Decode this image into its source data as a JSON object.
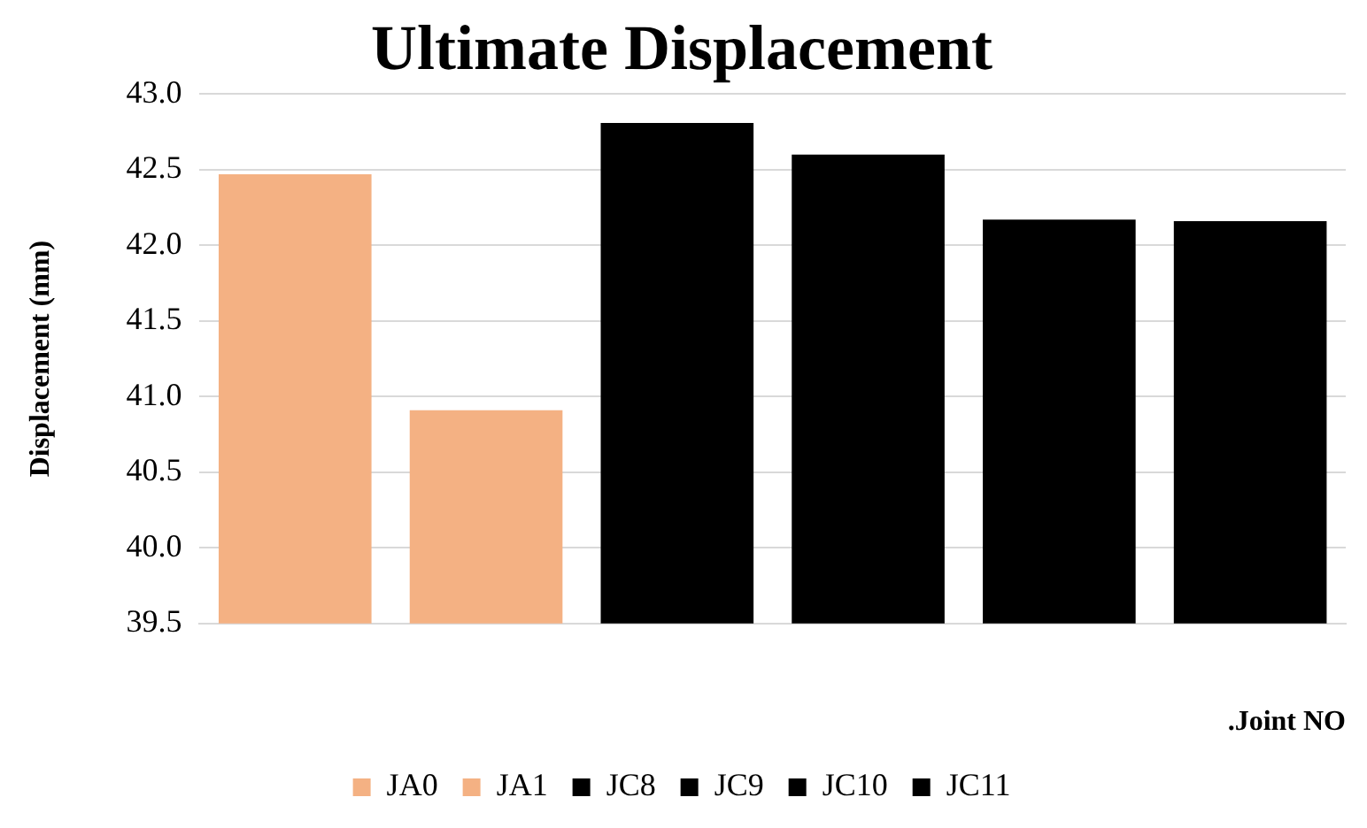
{
  "chart_data": {
    "type": "bar",
    "title": "Ultimate Displacement",
    "xlabel": ".Joint NO",
    "ylabel": "Displacement (mm)",
    "categories": [
      null
    ],
    "series": [
      {
        "name": "JA0",
        "color": "#f4b183",
        "values": [
          42.47
        ]
      },
      {
        "name": "JA1",
        "color": "#f4b183",
        "values": [
          40.91
        ]
      },
      {
        "name": "JC8",
        "color": "#000000",
        "values": [
          42.81
        ]
      },
      {
        "name": "JC9",
        "color": "#000000",
        "values": [
          42.6
        ]
      },
      {
        "name": "JC10",
        "color": "#000000",
        "values": [
          42.17
        ]
      },
      {
        "name": "JC11",
        "color": "#000000",
        "values": [
          42.16
        ]
      }
    ],
    "ylim": [
      39.5,
      43
    ],
    "yticks": [
      {
        "value": 39.5,
        "label": "39.5"
      },
      {
        "value": 40,
        "label": "40.0"
      },
      {
        "value": 40.5,
        "label": "40.5"
      },
      {
        "value": 41,
        "label": "41.0"
      },
      {
        "value": 41.5,
        "label": "41.5"
      },
      {
        "value": 42,
        "label": "42.0"
      },
      {
        "value": 42.5,
        "label": "42.5"
      },
      {
        "value": 43,
        "label": "43.0"
      }
    ],
    "grid": "y",
    "legend": "bottom"
  }
}
